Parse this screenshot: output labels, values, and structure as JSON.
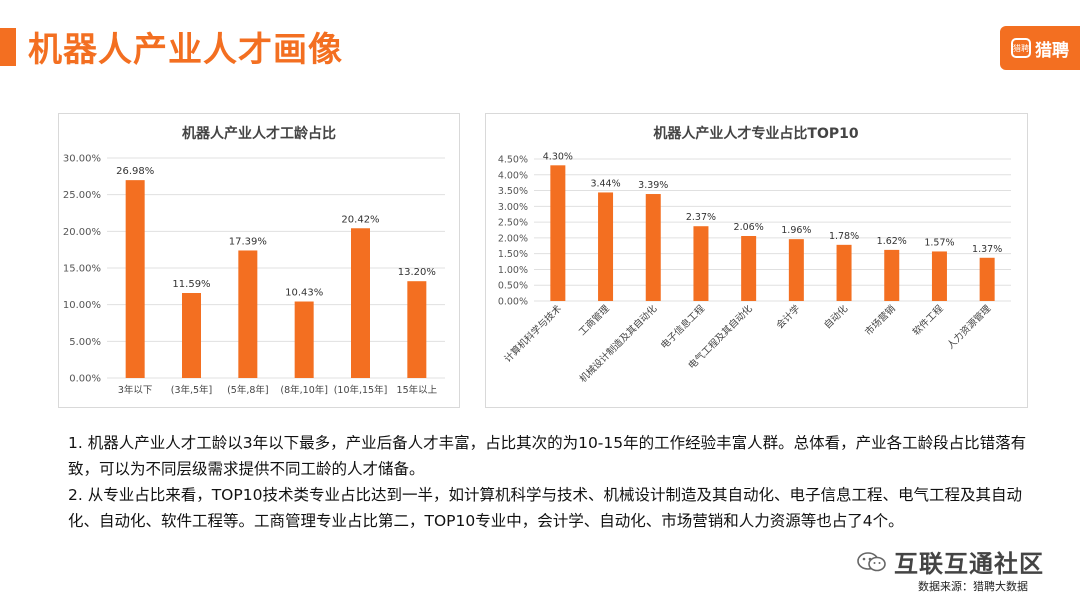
{
  "page": {
    "title": "机器人产业人才画像",
    "brand": {
      "icon_text": "猎聘",
      "label": "猎聘",
      "color": "#f36f21"
    },
    "accent_color": "#f36f21",
    "notes": [
      "1. 机器人产业人才工龄以3年以下最多，产业后备人才丰富，占比其次的为10-15年的工作经验丰富人群。总体看，产业各工龄段占比错落有致，可以为不同层级需求提供不同工龄的人才储备。",
      "2. 从专业占比来看，TOP10技术类专业占比达到一半，如计算机科学与技术、机械设计制造及其自动化、电子信息工程、电气工程及其自动化、自动化、软件工程等。工商管理专业占比第二，TOP10专业中，会计学、自动化、市场营销和人力资源等也占了4个。"
    ],
    "watermark": "互联互通社区",
    "watermark_icon": "wechat-icon",
    "source": "数据来源：猎聘大数据"
  },
  "chart_data": [
    {
      "type": "bar",
      "title": "机器人产业人才工龄占比",
      "categories": [
        "3年以下",
        "(3年,5年]",
        "(5年,8年]",
        "(8年,10年]",
        "(10年,15年]",
        "15年以上"
      ],
      "values": [
        26.98,
        11.59,
        17.39,
        10.43,
        20.42,
        13.2
      ],
      "value_labels": [
        "26.98%",
        "11.59%",
        "17.39%",
        "10.43%",
        "20.42%",
        "13.20%"
      ],
      "ylim": [
        0,
        30
      ],
      "yticks": [
        "0.00%",
        "5.00%",
        "10.00%",
        "15.00%",
        "20.00%",
        "25.00%",
        "30.00%"
      ],
      "grid": true,
      "bar_color": "#f36f21"
    },
    {
      "type": "bar",
      "title": "机器人产业人才专业占比TOP10",
      "categories": [
        "计算机科学与技术",
        "工商管理",
        "机械设计制造及其自动化",
        "电子信息工程",
        "电气工程及其自动化",
        "会计学",
        "自动化",
        "市场营销",
        "软件工程",
        "人力资源管理"
      ],
      "values": [
        4.3,
        3.44,
        3.39,
        2.37,
        2.06,
        1.96,
        1.78,
        1.62,
        1.57,
        1.37
      ],
      "value_labels": [
        "4.30%",
        "3.44%",
        "3.39%",
        "2.37%",
        "2.06%",
        "1.96%",
        "1.78%",
        "1.62%",
        "1.57%",
        "1.37%"
      ],
      "ylim": [
        0,
        4.5
      ],
      "yticks": [
        "0.00%",
        "0.50%",
        "1.00%",
        "1.50%",
        "2.00%",
        "2.50%",
        "3.00%",
        "3.50%",
        "4.00%",
        "4.50%"
      ],
      "grid": true,
      "bar_color": "#f36f21"
    }
  ]
}
